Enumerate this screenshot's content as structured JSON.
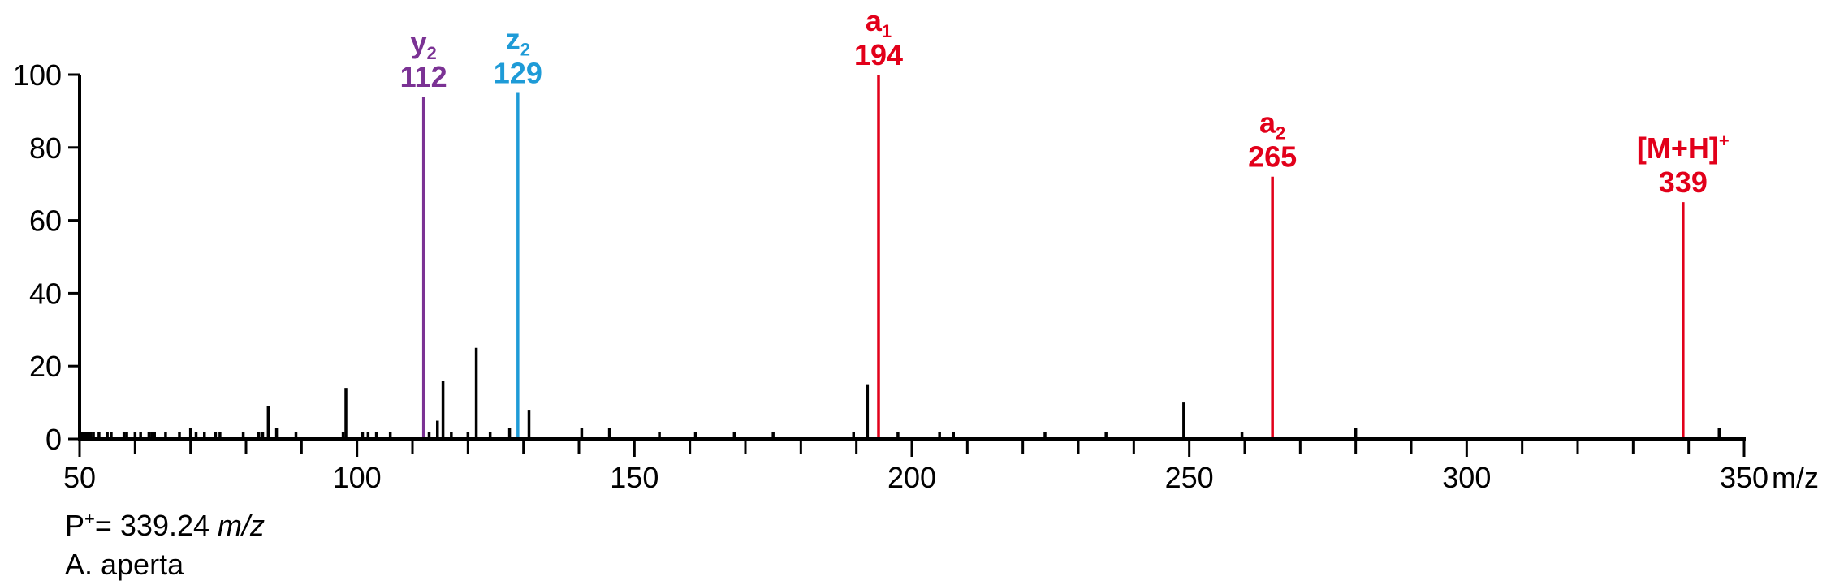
{
  "chart_data": {
    "type": "bar",
    "subtype": "mass-spectrum",
    "title": "",
    "xlabel": "",
    "x_unit": "m/z",
    "ylabel": "",
    "xlim": [
      50,
      350
    ],
    "ylim": [
      0,
      100
    ],
    "x_ticks": [
      50,
      100,
      150,
      200,
      250,
      300,
      350
    ],
    "x_minor_step": 10,
    "y_ticks": [
      0,
      20,
      40,
      60,
      80,
      100
    ],
    "grid": false,
    "colors": {
      "axis": "#000000",
      "peak": "#000000",
      "y_ion": "#7B3294",
      "z_ion": "#1E9BD7",
      "a_ion": "#E2001A"
    },
    "labeled_peaks": [
      {
        "ion": "y",
        "sub": "2",
        "sup": "",
        "mz": 112,
        "mz_label": "112",
        "intensity": 94,
        "color": "#7B3294"
      },
      {
        "ion": "z",
        "sub": "2",
        "sup": "",
        "mz": 129,
        "mz_label": "129",
        "intensity": 95,
        "color": "#1E9BD7"
      },
      {
        "ion": "a",
        "sub": "1",
        "sup": "",
        "mz": 194,
        "mz_label": "194",
        "intensity": 100,
        "color": "#E2001A"
      },
      {
        "ion": "a",
        "sub": "2",
        "sup": "",
        "mz": 265,
        "mz_label": "265",
        "intensity": 72,
        "color": "#E2001A"
      },
      {
        "ion": "[M+H]",
        "sub": "",
        "sup": "+",
        "mz": 339,
        "mz_label": "339",
        "intensity": 65,
        "color": "#E2001A"
      }
    ],
    "peaks": [
      {
        "mz": 50.5,
        "intensity": 2
      },
      {
        "mz": 51,
        "intensity": 2
      },
      {
        "mz": 51.5,
        "intensity": 2
      },
      {
        "mz": 52,
        "intensity": 2
      },
      {
        "mz": 52.5,
        "intensity": 2
      },
      {
        "mz": 53.5,
        "intensity": 2
      },
      {
        "mz": 55,
        "intensity": 2
      },
      {
        "mz": 55.7,
        "intensity": 2
      },
      {
        "mz": 58,
        "intensity": 2
      },
      {
        "mz": 58.5,
        "intensity": 2
      },
      {
        "mz": 60,
        "intensity": 2
      },
      {
        "mz": 61,
        "intensity": 2
      },
      {
        "mz": 62.5,
        "intensity": 2
      },
      {
        "mz": 63,
        "intensity": 2
      },
      {
        "mz": 63.5,
        "intensity": 2
      },
      {
        "mz": 65.5,
        "intensity": 2
      },
      {
        "mz": 68,
        "intensity": 2
      },
      {
        "mz": 70,
        "intensity": 3
      },
      {
        "mz": 71,
        "intensity": 2
      },
      {
        "mz": 72.5,
        "intensity": 2
      },
      {
        "mz": 74.5,
        "intensity": 2
      },
      {
        "mz": 75.3,
        "intensity": 2
      },
      {
        "mz": 79.5,
        "intensity": 2
      },
      {
        "mz": 82.3,
        "intensity": 2
      },
      {
        "mz": 83,
        "intensity": 2
      },
      {
        "mz": 84,
        "intensity": 9
      },
      {
        "mz": 85.5,
        "intensity": 3
      },
      {
        "mz": 89,
        "intensity": 2
      },
      {
        "mz": 97.5,
        "intensity": 2
      },
      {
        "mz": 98,
        "intensity": 14
      },
      {
        "mz": 101,
        "intensity": 2
      },
      {
        "mz": 102,
        "intensity": 2
      },
      {
        "mz": 103.5,
        "intensity": 2
      },
      {
        "mz": 106,
        "intensity": 2
      },
      {
        "mz": 113,
        "intensity": 2
      },
      {
        "mz": 114.5,
        "intensity": 5
      },
      {
        "mz": 115.5,
        "intensity": 16
      },
      {
        "mz": 117,
        "intensity": 2
      },
      {
        "mz": 120,
        "intensity": 2
      },
      {
        "mz": 121.5,
        "intensity": 25
      },
      {
        "mz": 124,
        "intensity": 2
      },
      {
        "mz": 127.5,
        "intensity": 3
      },
      {
        "mz": 131,
        "intensity": 8
      },
      {
        "mz": 140.5,
        "intensity": 3
      },
      {
        "mz": 145.5,
        "intensity": 3
      },
      {
        "mz": 154.5,
        "intensity": 2
      },
      {
        "mz": 161,
        "intensity": 2
      },
      {
        "mz": 168,
        "intensity": 2
      },
      {
        "mz": 175,
        "intensity": 2
      },
      {
        "mz": 189.5,
        "intensity": 2
      },
      {
        "mz": 192,
        "intensity": 15
      },
      {
        "mz": 197.5,
        "intensity": 2
      },
      {
        "mz": 205,
        "intensity": 2
      },
      {
        "mz": 207.5,
        "intensity": 2
      },
      {
        "mz": 224,
        "intensity": 2
      },
      {
        "mz": 235,
        "intensity": 2
      },
      {
        "mz": 249,
        "intensity": 10
      },
      {
        "mz": 259.5,
        "intensity": 2
      },
      {
        "mz": 280,
        "intensity": 3
      },
      {
        "mz": 345.5,
        "intensity": 3
      }
    ]
  },
  "x_tick_labels": [
    "50",
    "100",
    "150",
    "200",
    "250",
    "300",
    "350"
  ],
  "x_unit_label": "m/z",
  "y_tick_labels": [
    "0",
    "20",
    "40",
    "60",
    "80",
    "100"
  ],
  "caption": {
    "precursor_prefix": "P",
    "precursor_sup": "+",
    "precursor_value": "= 339.24 ",
    "precursor_unit": "m/z",
    "species": "A. aperta"
  }
}
